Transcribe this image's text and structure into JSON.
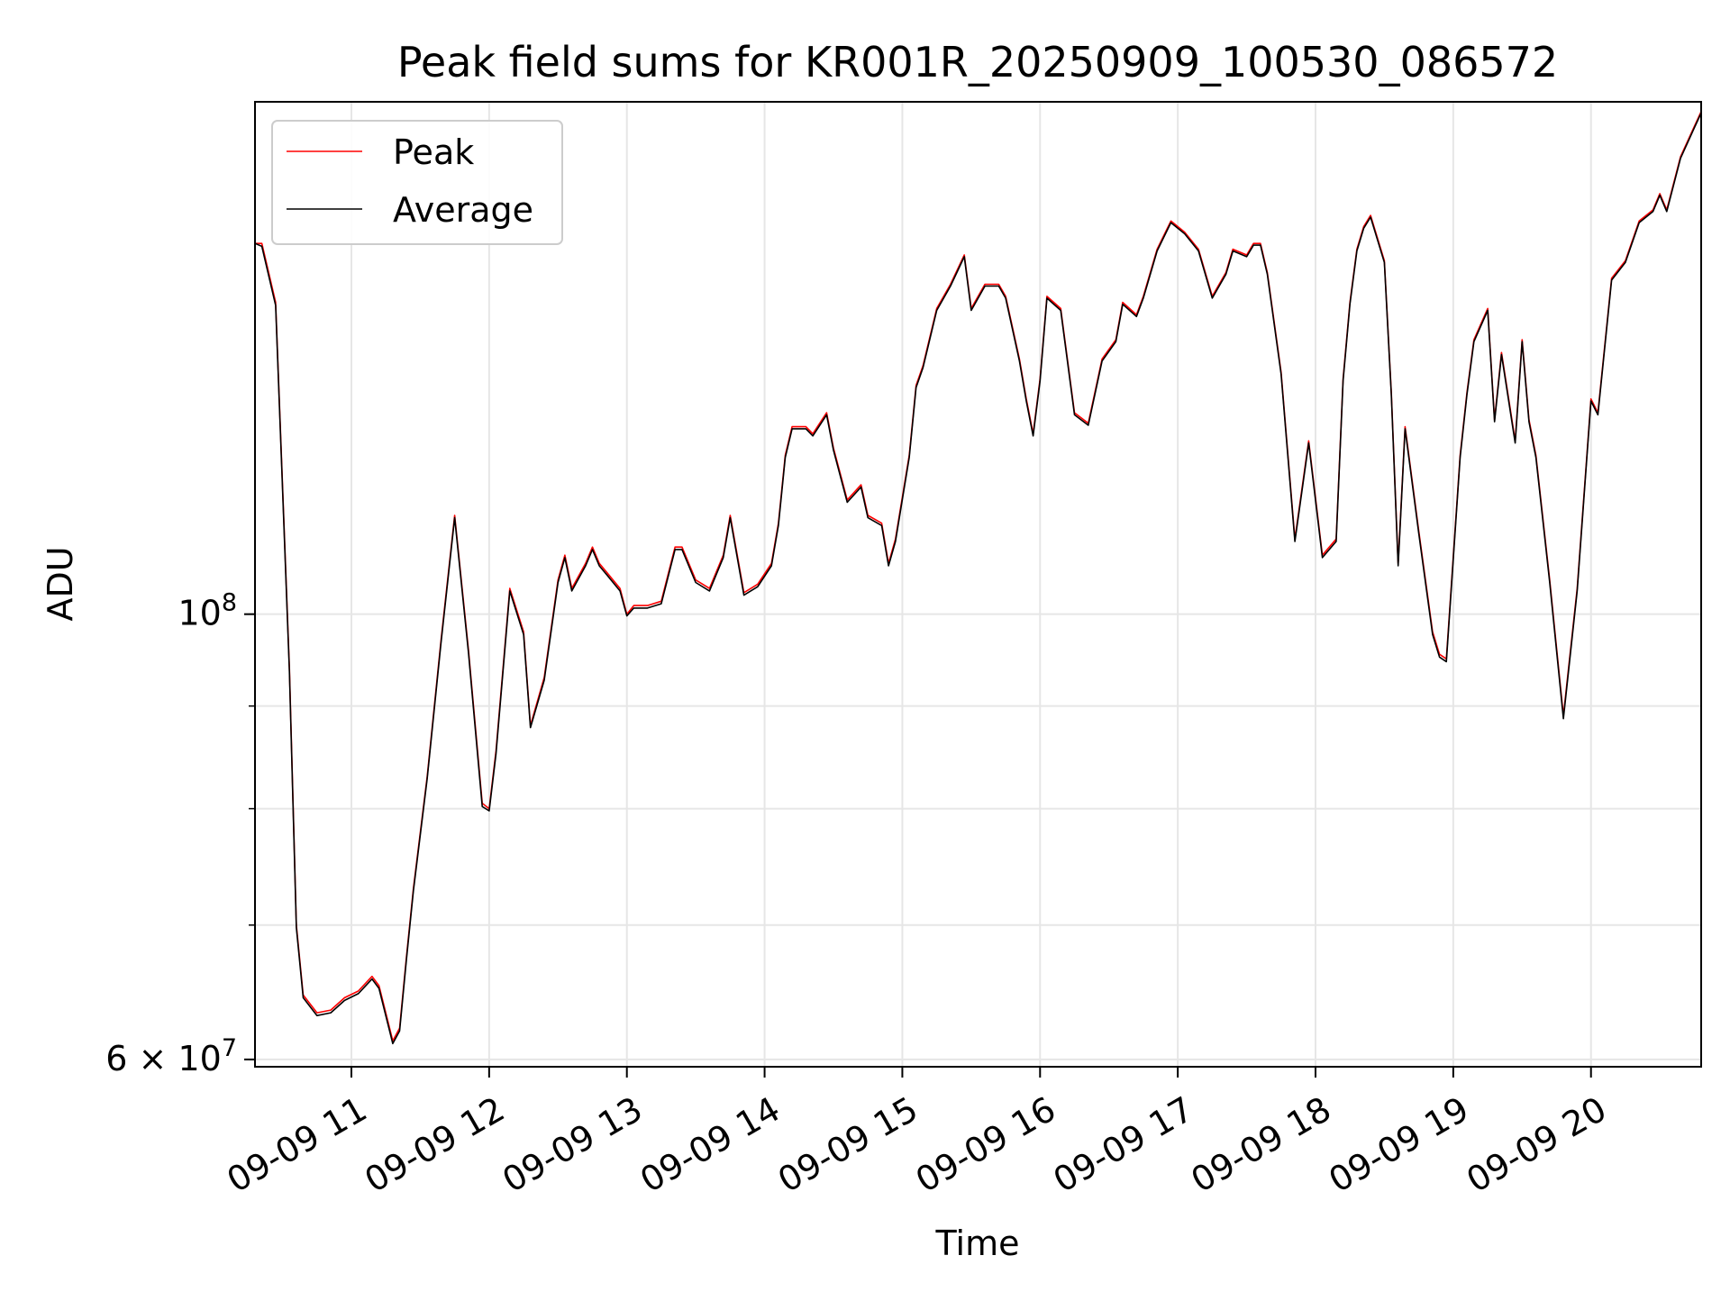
{
  "chart_data": {
    "type": "line",
    "title": "Peak field sums for KR001R_20250909_100530_086572",
    "xlabel": "Time",
    "ylabel": "ADU",
    "yscale": "log",
    "xlim": [
      10.3,
      20.8
    ],
    "ylim": [
      59500000,
      180000000
    ],
    "x_ticks": [
      {
        "value": 11,
        "label": "09-09 11"
      },
      {
        "value": 12,
        "label": "09-09 12"
      },
      {
        "value": 13,
        "label": "09-09 13"
      },
      {
        "value": 14,
        "label": "09-09 14"
      },
      {
        "value": 15,
        "label": "09-09 15"
      },
      {
        "value": 16,
        "label": "09-09 16"
      },
      {
        "value": 17,
        "label": "09-09 17"
      },
      {
        "value": 18,
        "label": "09-09 18"
      },
      {
        "value": 19,
        "label": "09-09 19"
      },
      {
        "value": 20,
        "label": "09-09 20"
      }
    ],
    "y_major_ticks": [
      {
        "value": 60000000,
        "label": "6 × 10^7",
        "base": "6 × 10",
        "exp": "7"
      },
      {
        "value": 100000000,
        "label": "10^8",
        "base": "10",
        "exp": "8"
      }
    ],
    "y_minor_ticks": [
      60000000,
      70000000,
      80000000,
      90000000,
      100000000
    ],
    "grid": true,
    "legend_position": "upper-left",
    "x": [
      10.3,
      10.35,
      10.45,
      10.55,
      10.6,
      10.65,
      10.75,
      10.85,
      10.95,
      11.05,
      11.15,
      11.2,
      11.3,
      11.35,
      11.4,
      11.45,
      11.55,
      11.65,
      11.75,
      11.85,
      11.95,
      12.0,
      12.05,
      12.15,
      12.25,
      12.3,
      12.4,
      12.5,
      12.55,
      12.6,
      12.7,
      12.75,
      12.8,
      12.85,
      12.95,
      13.0,
      13.05,
      13.15,
      13.25,
      13.35,
      13.4,
      13.5,
      13.6,
      13.7,
      13.75,
      13.85,
      13.95,
      14.05,
      14.1,
      14.15,
      14.2,
      14.3,
      14.35,
      14.45,
      14.5,
      14.6,
      14.7,
      14.75,
      14.85,
      14.9,
      14.95,
      15.05,
      15.1,
      15.15,
      15.25,
      15.35,
      15.45,
      15.5,
      15.6,
      15.7,
      15.75,
      15.85,
      15.9,
      15.95,
      16.0,
      16.05,
      16.15,
      16.25,
      16.35,
      16.45,
      16.55,
      16.6,
      16.7,
      16.75,
      16.85,
      16.95,
      17.05,
      17.15,
      17.25,
      17.35,
      17.4,
      17.5,
      17.55,
      17.6,
      17.65,
      17.75,
      17.85,
      17.95,
      18.05,
      18.15,
      18.2,
      18.25,
      18.3,
      18.35,
      18.4,
      18.5,
      18.55,
      18.6,
      18.65,
      18.75,
      18.85,
      18.9,
      18.95,
      19.05,
      19.1,
      19.15,
      19.25,
      19.3,
      19.35,
      19.45,
      19.5,
      19.55,
      19.6,
      19.7,
      19.8,
      19.9,
      20.0,
      20.05,
      20.15,
      20.25,
      20.35,
      20.45,
      20.5,
      20.55,
      20.65,
      20.75,
      20.8
    ],
    "series": [
      {
        "name": "Peak",
        "color": "#ff0000",
        "values": [
          153000000,
          153000000,
          143000000,
          94000000,
          70000000,
          64600000,
          63300000,
          63500000,
          64400000,
          64900000,
          66000000,
          65300000,
          61300000,
          62200000,
          67500000,
          73000000,
          83000000,
          97000000,
          112000000,
          96000000,
          80500000,
          80000000,
          85500000,
          103000000,
          98000000,
          88000000,
          93000000,
          104000000,
          107000000,
          103000000,
          106000000,
          108000000,
          106000000,
          105000000,
          103000000,
          100000000,
          101000000,
          101000000,
          101500000,
          108000000,
          108000000,
          104000000,
          103000000,
          107000000,
          112000000,
          102500000,
          103500000,
          106000000,
          111000000,
          120000000,
          124000000,
          124000000,
          123000000,
          126000000,
          121000000,
          114000000,
          116000000,
          112000000,
          111000000,
          106000000,
          109000000,
          120000000,
          130000000,
          133000000,
          142000000,
          146000000,
          151000000,
          142000000,
          146000000,
          146000000,
          144000000,
          134000000,
          128000000,
          123000000,
          131000000,
          144000000,
          142000000,
          126000000,
          124500000,
          134000000,
          137000000,
          143000000,
          141000000,
          144000000,
          152000000,
          157000000,
          155000000,
          152000000,
          144000000,
          148000000,
          152000000,
          151000000,
          153000000,
          153000000,
          148000000,
          132000000,
          109000000,
          122000000,
          107000000,
          109000000,
          131000000,
          143000000,
          152000000,
          156000000,
          158000000,
          150000000,
          129000000,
          106000000,
          124000000,
          110000000,
          98000000,
          95500000,
          95000000,
          120000000,
          129000000,
          137000000,
          142000000,
          125000000,
          135000000,
          122000000,
          137000000,
          125000000,
          120000000,
          104000000,
          89000000,
          103000000,
          128000000,
          126000000,
          147000000,
          150000000,
          157000000,
          159000000,
          162000000,
          159000000,
          169000000,
          175000000,
          178000000
        ]
      },
      {
        "name": "Average",
        "color": "#000000",
        "values": [
          153000000,
          152500000,
          142500000,
          93600000,
          69800000,
          64400000,
          63100000,
          63300000,
          64200000,
          64700000,
          65800000,
          65100000,
          61100000,
          62000000,
          67300000,
          72800000,
          82800000,
          96700000,
          111700000,
          95700000,
          80200000,
          79800000,
          85200000,
          102700000,
          97700000,
          87800000,
          92700000,
          103700000,
          106700000,
          102700000,
          105700000,
          107700000,
          105700000,
          104700000,
          102700000,
          99800000,
          100700000,
          100700000,
          101200000,
          107700000,
          107700000,
          103700000,
          102700000,
          106700000,
          111700000,
          102200000,
          103200000,
          105700000,
          110700000,
          119700000,
          123700000,
          123700000,
          122700000,
          125700000,
          120700000,
          113700000,
          115700000,
          111700000,
          110700000,
          105700000,
          108700000,
          119700000,
          129700000,
          132700000,
          141700000,
          145700000,
          150700000,
          141700000,
          145700000,
          145700000,
          143700000,
          133700000,
          127700000,
          122700000,
          130700000,
          143700000,
          141700000,
          125700000,
          124200000,
          133700000,
          136700000,
          142700000,
          140700000,
          143700000,
          151700000,
          156700000,
          154700000,
          151700000,
          143700000,
          147700000,
          151700000,
          150700000,
          152700000,
          152700000,
          147700000,
          131700000,
          108700000,
          121700000,
          106700000,
          108700000,
          130700000,
          142700000,
          151700000,
          155700000,
          157700000,
          149700000,
          128700000,
          105700000,
          123700000,
          109700000,
          97700000,
          95200000,
          94700000,
          119700000,
          128700000,
          136700000,
          141700000,
          124700000,
          134700000,
          121700000,
          136700000,
          124700000,
          119700000,
          103700000,
          88700000,
          102700000,
          127700000,
          125700000,
          146700000,
          149700000,
          156700000,
          158700000,
          161700000,
          158700000,
          168700000,
          174700000,
          177700000
        ]
      }
    ]
  }
}
